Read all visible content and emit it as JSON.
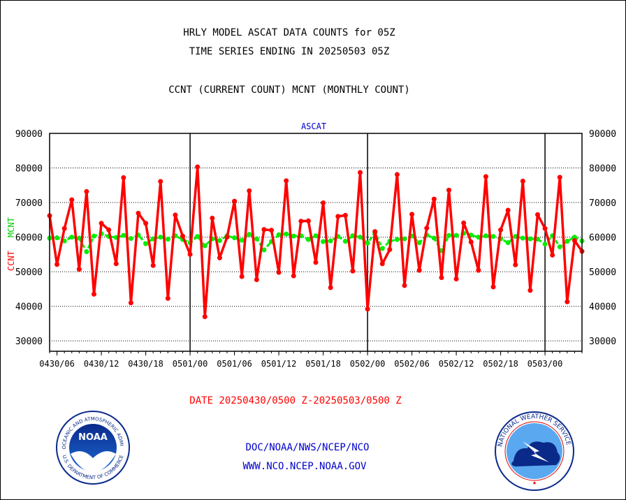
{
  "header": {
    "line1": "HRLY MODEL ASCAT DATA COUNTS for 05Z",
    "line2": "TIME SERIES ENDING IN 20250503 05Z",
    "line3": "CCNT (CURRENT COUNT) MCNT (MONTHLY COUNT)"
  },
  "footer": {
    "date_range": "DATE 20250430/0500 Z-20250503/0500 Z",
    "org": "DOC/NOAA/NWS/NCEP/NCO",
    "url": "WWW.NCO.NCEP.NOAA.GOV"
  },
  "logos": {
    "noaa_text": "NOAA",
    "noaa_ring": "NATIONAL OCEANIC AND ATMOSPHERIC ADMINISTRATION",
    "noaa_ring_bottom": "U.S. DEPARTMENT OF COMMERCE",
    "nws_ring": "NATIONAL WEATHER SERVICE"
  },
  "chart_data": {
    "type": "line",
    "title": "ASCAT",
    "ylabel_left": "CCNT",
    "ylabel_right": "MCNT",
    "ylim": [
      27000,
      90000
    ],
    "yticks": [
      30000,
      40000,
      50000,
      60000,
      70000,
      80000,
      90000
    ],
    "ytick_labels": [
      "30000",
      "40000",
      "50000",
      "60000",
      "70000",
      "80000",
      "90000"
    ],
    "xlim": [
      5,
      77
    ],
    "xtick_hours": [
      6,
      12,
      18,
      24,
      30,
      36,
      42,
      48,
      54,
      60,
      66,
      72
    ],
    "xtick_labels": [
      "0430/06",
      "0430/12",
      "0430/18",
      "0501/00",
      "0501/06",
      "0501/12",
      "0501/18",
      "0502/00",
      "0502/06",
      "0502/12",
      "0502/18",
      "0503/00"
    ],
    "day_boundaries": [
      24,
      48,
      72
    ],
    "grid": true,
    "series": [
      {
        "name": "CCNT",
        "color": "#ff0000",
        "values": [
          66200,
          52100,
          62500,
          70800,
          50700,
          73200,
          43500,
          64000,
          62100,
          52300,
          77200,
          41000,
          66900,
          64000,
          51800,
          76100,
          42300,
          66400,
          60300,
          55000,
          80300,
          37000,
          65500,
          54000,
          60000,
          70400,
          48600,
          73400,
          47700,
          62200,
          62000,
          49800,
          76300,
          48800,
          64600,
          64700,
          52700,
          69900,
          45400,
          66000,
          66300,
          50200,
          78700,
          39200,
          61600,
          52300,
          56400,
          78100,
          46000,
          66600,
          50400,
          62600,
          71000,
          48300,
          73600,
          47900,
          64100,
          58600,
          50400,
          77500,
          45600,
          62100,
          67800,
          52000,
          76200,
          44600,
          66500,
          62500,
          54800,
          77300,
          41300,
          59000,
          55900
        ]
      },
      {
        "name": "MCNT",
        "color": "#00ee00",
        "values": [
          59700,
          59800,
          58900,
          60000,
          59700,
          55800,
          60300,
          61000,
          60200,
          59900,
          60500,
          59600,
          60600,
          58100,
          59500,
          60000,
          59400,
          60400,
          59300,
          58400,
          60200,
          57500,
          59500,
          59000,
          60400,
          59800,
          59100,
          60800,
          59500,
          56300,
          58700,
          60700,
          60900,
          60300,
          60400,
          59300,
          60400,
          58700,
          58900,
          60200,
          58800,
          60400,
          60000,
          58300,
          61200,
          56700,
          58800,
          59300,
          59500,
          60300,
          58400,
          60600,
          59700,
          56100,
          60500,
          60500,
          61100,
          60600,
          60000,
          60400,
          60200,
          59500,
          58400,
          60200,
          59700,
          59500,
          59400,
          58000,
          60400,
          57200,
          58800,
          60000,
          58900
        ]
      }
    ]
  }
}
